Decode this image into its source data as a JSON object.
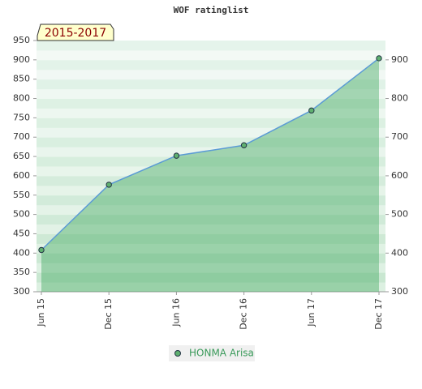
{
  "chart_data": {
    "type": "line",
    "title": "WOF ratinglist",
    "annotation": "2015-2017",
    "categories": [
      "Jun 15",
      "Dec 15",
      "Jun 16",
      "Dec 16",
      "Jun 17",
      "Dec 17"
    ],
    "series": [
      {
        "name": "HONMA Arisa",
        "color": "#5b9bd5",
        "values": [
          408,
          577,
          652,
          679,
          769,
          904
        ]
      }
    ],
    "ylim": [
      300,
      950
    ],
    "yticks": [
      300,
      350,
      400,
      450,
      500,
      550,
      600,
      650,
      700,
      750,
      800,
      850,
      900,
      950
    ],
    "y2lim": [
      300,
      950
    ],
    "y2ticks": [
      300,
      400,
      500,
      600,
      700,
      800,
      900
    ],
    "grid": true
  }
}
